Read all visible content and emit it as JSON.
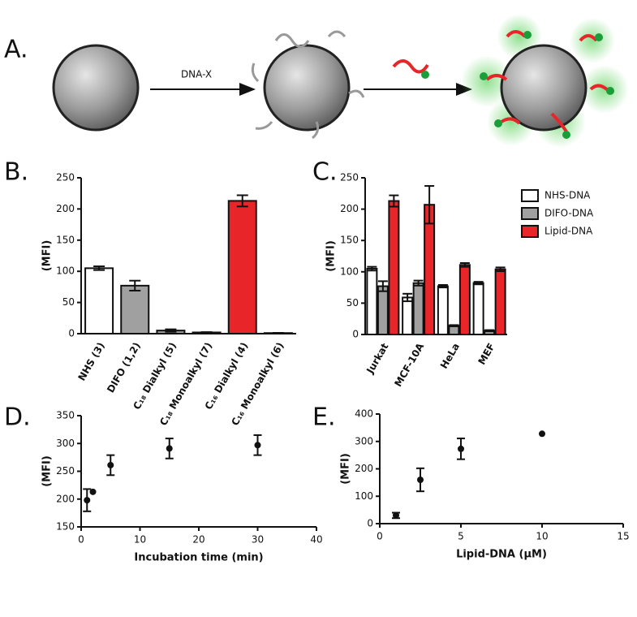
{
  "diagram": {
    "label": "A.",
    "step_label": "DNA-X"
  },
  "chart_data": [
    {
      "type": "bar",
      "panel_label": "B.",
      "y_label": "(MFI)",
      "categories": [
        "NHS (3)",
        "DIFO (1,2)",
        "C₁₈ Dialkyl (5)",
        "C₁₈ Monoalkyl (7)",
        "C₁₆ Dialkyl (4)",
        "C₁₆ Monoalkyl (6)"
      ],
      "values": [
        105,
        77,
        5,
        2,
        213,
        1
      ],
      "errors": [
        3,
        8,
        2,
        0.5,
        9,
        0.3
      ],
      "colors": [
        "#ffffff",
        "#a0a0a0",
        "#a0a0a0",
        "#a0a0a0",
        "#e8262a",
        "#a0a0a0"
      ],
      "ylim": [
        0,
        250
      ],
      "yticks": [
        0,
        50,
        100,
        150,
        200,
        250
      ]
    },
    {
      "type": "grouped_bar",
      "panel_label": "C.",
      "y_label": "(MFI)",
      "categories": [
        "Jurkat",
        "MCF-10A",
        "HeLa",
        "MEF"
      ],
      "series": [
        {
          "name": "NHS-DNA",
          "color": "#ffffff",
          "values": [
            105,
            59,
            77,
            82
          ],
          "errors": [
            3,
            6,
            2,
            2
          ]
        },
        {
          "name": "DIFO-DNA",
          "color": "#a0a0a0",
          "values": [
            77,
            82,
            14,
            6
          ],
          "errors": [
            8,
            4,
            1,
            1
          ]
        },
        {
          "name": "Lipid-DNA",
          "color": "#e8262a",
          "values": [
            213,
            207,
            111,
            104
          ],
          "errors": [
            9,
            30,
            3,
            3
          ]
        }
      ],
      "ylim": [
        0,
        250
      ],
      "yticks": [
        0,
        50,
        100,
        150,
        200,
        250
      ]
    },
    {
      "type": "scatter",
      "panel_label": "D.",
      "y_label": "(MFI)",
      "x_label": "Incubation time (min)",
      "x": [
        1,
        2,
        5,
        15,
        30
      ],
      "values": [
        198,
        213,
        261,
        291,
        297
      ],
      "errors": [
        20,
        null,
        18,
        18,
        18
      ],
      "xlim": [
        0,
        40
      ],
      "xticks": [
        0,
        10,
        20,
        30,
        40
      ],
      "ylim": [
        150,
        350
      ],
      "yticks": [
        150,
        200,
        250,
        300,
        350
      ]
    },
    {
      "type": "scatter",
      "panel_label": "E.",
      "y_label": "(MFI)",
      "x_label": "Lipid-DNA  (μM)",
      "x": [
        1,
        2.5,
        5,
        10
      ],
      "values": [
        30,
        160,
        273,
        328
      ],
      "errors": [
        10,
        42,
        38,
        null
      ],
      "xlim": [
        0,
        15
      ],
      "xticks": [
        0,
        5,
        10,
        15
      ],
      "ylim": [
        0,
        400
      ],
      "yticks": [
        0,
        100,
        200,
        300,
        400
      ]
    }
  ]
}
